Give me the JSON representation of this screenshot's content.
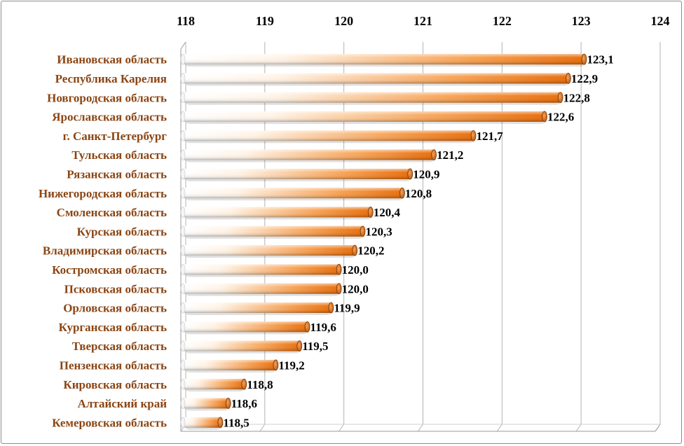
{
  "chart_data": {
    "type": "bar",
    "orientation": "horizontal",
    "categories": [
      "Ивановская область",
      "Республика Карелия",
      "Новгородская область",
      "Ярославская область",
      "г. Санкт-Петербург",
      "Тульская область",
      "Рязанская область",
      "Нижегородская область",
      "Смоленская область",
      "Курская область",
      "Владимирская область",
      "Костромская область",
      "Псковская область",
      "Орловская область",
      "Курганская область",
      "Тверская область",
      "Пензенская область",
      "Кировская область",
      "Алтайский край",
      "Кемеровская область"
    ],
    "values": [
      123.1,
      122.9,
      122.8,
      122.6,
      121.7,
      121.2,
      120.9,
      120.8,
      120.4,
      120.3,
      120.2,
      120.0,
      120.0,
      119.9,
      119.6,
      119.5,
      119.2,
      118.8,
      118.6,
      118.5
    ],
    "value_labels": [
      "123,1",
      "122,9",
      "122,8",
      "122,6",
      "121,7",
      "121,2",
      "120,9",
      "120,8",
      "120,4",
      "120,3",
      "120,2",
      "120,0",
      "120,0",
      "119,9",
      "119,6",
      "119,5",
      "119,2",
      "118,8",
      "118,6",
      "118,5"
    ],
    "xlim": [
      118,
      124
    ],
    "xticks": [
      "118",
      "119",
      "120",
      "121",
      "122",
      "123",
      "124"
    ],
    "x_axis_position": "top",
    "grid": true,
    "style": "3d-cylinder",
    "colors": {
      "bar_light": "#fff3e6",
      "bar_dark": "#e8700f",
      "category_label": "#8b4513",
      "grid": "#b3b3b3"
    }
  }
}
